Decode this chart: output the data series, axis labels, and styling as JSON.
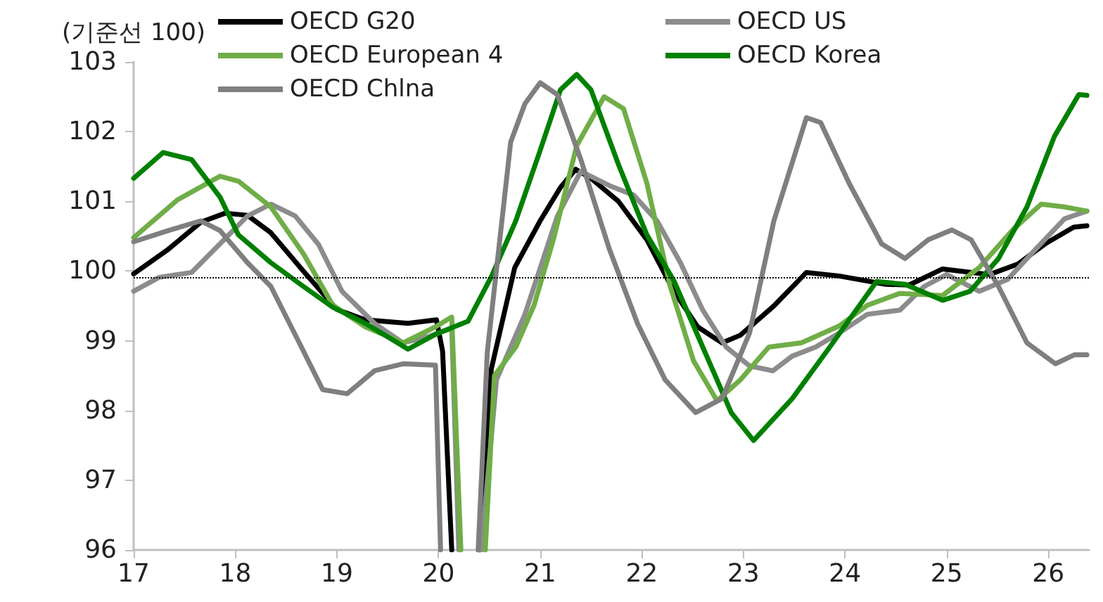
{
  "chart_data": {
    "type": "line",
    "ylabel": "(기준선 100)",
    "xlim": [
      17,
      26.4
    ],
    "xticks": [
      17,
      18,
      19,
      20,
      21,
      22,
      23,
      24,
      25,
      26
    ],
    "ylim": [
      96,
      103
    ],
    "yticks": [
      96,
      97,
      98,
      99,
      100,
      101,
      102,
      103
    ],
    "grid": false,
    "legend": "top left",
    "marker": "none",
    "line_style": "solid",
    "ref_lines": [
      {
        "axis": "y",
        "value": 99.9,
        "color": "#000000",
        "line_style": "dotted"
      }
    ],
    "series": [
      {
        "name": "OECD G20",
        "color": "#000000",
        "x": [
          17,
          17.33,
          17.66,
          17.9,
          18.12,
          18.35,
          18.67,
          19,
          19.28,
          19.7,
          19.98,
          20.04,
          20.13,
          20.27,
          20.4,
          20.52,
          20.75,
          21,
          21.2,
          21.35,
          21.5,
          21.77,
          22.05,
          22.32,
          22.55,
          22.79,
          22.97,
          23.3,
          23.62,
          23.94,
          24.4,
          24.63,
          24.96,
          25.19,
          25.42,
          25.7,
          25.98,
          26.25,
          26.38
        ],
        "values": [
          99.96,
          100.3,
          100.7,
          100.83,
          100.8,
          100.55,
          100,
          99.45,
          99.3,
          99.25,
          99.3,
          98.85,
          96,
          null,
          96,
          98.6,
          100.05,
          100.72,
          101.2,
          101.46,
          101.33,
          101,
          100.45,
          99.7,
          99.2,
          98.97,
          99.08,
          99.5,
          99.98,
          99.93,
          99.81,
          99.8,
          100.03,
          99.99,
          99.95,
          100.1,
          100.4,
          100.63,
          100.65
        ]
      },
      {
        "name": "OECD US",
        "color": "#8c8c8c",
        "x": [
          17,
          17.25,
          17.57,
          17.89,
          18.12,
          18.35,
          18.59,
          18.82,
          19.05,
          19.37,
          19.65,
          19.92,
          20.13,
          20.2,
          20.31,
          20.42,
          20.57,
          20.85,
          21.17,
          21.4,
          21.69,
          21.92,
          22.15,
          22.38,
          22.6,
          22.83,
          23.06,
          23.29,
          23.48,
          23.71,
          23.94,
          24.22,
          24.54,
          24.78,
          25,
          25.32,
          25.6,
          25.88,
          26.16,
          26.38
        ],
        "values": [
          99.71,
          99.91,
          99.98,
          100.45,
          100.79,
          100.96,
          100.79,
          100.38,
          99.71,
          99.25,
          98.97,
          99.07,
          99.18,
          96,
          null,
          96,
          98.44,
          99.38,
          100.79,
          101.43,
          101.22,
          101.09,
          100.72,
          100.12,
          99.44,
          98.91,
          98.64,
          98.57,
          98.78,
          98.91,
          99.11,
          99.38,
          99.44,
          99.78,
          99.95,
          99.71,
          99.88,
          100.32,
          100.75,
          100.86
        ]
      },
      {
        "name": "OECD European 4",
        "color": "#70ad47",
        "x": [
          17,
          17.43,
          17.85,
          18.03,
          18.35,
          18.67,
          18.96,
          19.28,
          19.65,
          19.97,
          20.13,
          20.22,
          20.34,
          20.46,
          20.55,
          20.76,
          20.94,
          21.13,
          21.36,
          21.63,
          21.82,
          22.05,
          22.28,
          22.51,
          22.74,
          22.97,
          23.25,
          23.57,
          23.94,
          24.22,
          24.54,
          24.96,
          25.32,
          25.65,
          25.93,
          26.16,
          26.38
        ],
        "values": [
          100.48,
          101.02,
          101.36,
          101.29,
          100.92,
          100.25,
          99.51,
          99.2,
          98.97,
          99.2,
          99.34,
          96,
          null,
          96,
          98.5,
          98.91,
          99.51,
          100.45,
          101.8,
          102.5,
          102.33,
          101.26,
          99.78,
          98.71,
          98.14,
          98.44,
          98.91,
          98.97,
          99.21,
          99.51,
          99.68,
          99.65,
          100.05,
          100.59,
          100.96,
          100.92,
          100.86
        ]
      },
      {
        "name": "OECD Korea",
        "color": "#008000",
        "x": [
          17,
          17.29,
          17.57,
          17.85,
          18.03,
          18.35,
          18.67,
          18.96,
          19.28,
          19.7,
          19.98,
          20.29,
          20.52,
          20.76,
          21,
          21.2,
          21.36,
          21.5,
          21.77,
          22.05,
          22.32,
          22.6,
          22.88,
          23.1,
          23.48,
          23.85,
          24.31,
          24.59,
          24.96,
          25.23,
          25.51,
          25.79,
          26.06,
          26.3,
          26.38
        ],
        "values": [
          101.33,
          101.7,
          101.6,
          101.06,
          100.52,
          100.12,
          99.78,
          99.48,
          99.25,
          98.88,
          99.1,
          99.28,
          99.92,
          100.72,
          101.73,
          102.6,
          102.82,
          102.6,
          101.53,
          100.52,
          99.85,
          98.91,
          97.97,
          97.57,
          98.17,
          98.91,
          99.85,
          99.81,
          99.58,
          99.71,
          100.18,
          100.92,
          101.93,
          102.53,
          102.52
        ]
      },
      {
        "name": "OECD Chlna",
        "color": "#7f7f7f",
        "x": [
          17,
          17.34,
          17.66,
          17.85,
          18.12,
          18.35,
          18.63,
          18.86,
          19.1,
          19.37,
          19.65,
          19.97,
          20.02,
          20.2,
          20.39,
          20.48,
          20.71,
          20.85,
          21,
          21.17,
          21.4,
          21.68,
          21.96,
          22.23,
          22.53,
          22.79,
          23.06,
          23.3,
          23.62,
          23.76,
          24.04,
          24.36,
          24.59,
          24.82,
          25.05,
          25.24,
          25.51,
          25.79,
          26.07,
          26.26,
          26.38
        ],
        "values": [
          100.42,
          100.58,
          100.72,
          100.58,
          100.12,
          99.78,
          98.97,
          98.3,
          98.24,
          98.57,
          98.67,
          98.65,
          96,
          null,
          96,
          98.84,
          101.85,
          102.4,
          102.7,
          102.53,
          101.6,
          100.32,
          99.24,
          98.44,
          97.97,
          98.17,
          99.11,
          100.72,
          102.2,
          102.13,
          101.26,
          100.39,
          100.18,
          100.45,
          100.59,
          100.45,
          99.78,
          98.97,
          98.67,
          98.8,
          98.8
        ]
      }
    ]
  }
}
